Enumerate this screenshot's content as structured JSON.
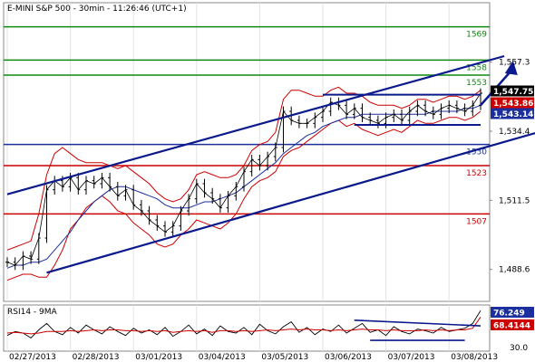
{
  "chart_data": [
    {
      "type": "candlestick",
      "title": "E-MINI S&P 500 - 30min - 11:26:46 (UTC+1)",
      "y_ticks": [
        "1,557.3",
        "1,534.4",
        "1,511.5",
        "1,488.6"
      ],
      "x_labels": [
        "02/27/2013",
        "02/28/2013",
        "03/01/2013",
        "03/04/2013",
        "03/05/2013",
        "03/06/2013",
        "03/07/2013",
        "03/08/2013"
      ],
      "ylim": [
        1478,
        1577
      ],
      "price_tag": {
        "text": "1,547.75",
        "value": 1547.75
      },
      "band_tags": [
        {
          "text": "1,543.86",
          "value": 1543.86,
          "color": "#cc0000"
        },
        {
          "text": "1,543.14",
          "value": 1543.14,
          "color": "#1c2f9e"
        }
      ],
      "horizontal_levels": [
        {
          "text": "1569",
          "value": 1569,
          "color": "#118811"
        },
        {
          "text": "1558",
          "value": 1558,
          "color": "#118811"
        },
        {
          "text": "1553",
          "value": 1553,
          "color": "#118811"
        },
        {
          "text": "1530",
          "value": 1530,
          "color": "#1c2f9e"
        },
        {
          "text": "1523",
          "value": 1523,
          "color": "#cc0000"
        },
        {
          "text": "1507",
          "value": 1507,
          "color": "#cc0000"
        }
      ],
      "channel_upper": [
        [
          0,
          1513.5
        ],
        [
          63,
          1559.3
        ]
      ],
      "channel_lower": [
        [
          5,
          1487.5
        ],
        [
          68,
          1534.6
        ]
      ],
      "consolidation_top": [
        [
          40,
          1546.5
        ],
        [
          60,
          1546.5
        ]
      ],
      "consolidation_bottom": [
        [
          44,
          1536.5
        ],
        [
          60,
          1536.5
        ]
      ],
      "forecast_arrow": [
        [
          60,
          1543
        ],
        [
          64,
          1556
        ]
      ],
      "x_label_index": [
        0,
        8,
        16,
        24,
        32,
        40,
        48,
        56
      ],
      "close": [
        1491,
        1490,
        1493,
        1492,
        1499,
        1515,
        1518,
        1516,
        1519,
        1515,
        1518,
        1517,
        1519,
        1516,
        1513,
        1515,
        1510,
        1508,
        1505,
        1503,
        1501,
        1503,
        1508,
        1512,
        1517,
        1514,
        1512,
        1509,
        1513,
        1516,
        1521,
        1525,
        1523,
        1526,
        1529,
        1541,
        1538,
        1537,
        1537,
        1539,
        1541,
        1544,
        1543,
        1540,
        1542,
        1539,
        1538,
        1537,
        1539,
        1540,
        1538,
        1541,
        1543,
        1541,
        1540,
        1542,
        1543,
        1542,
        1541,
        1543,
        1547
      ],
      "ma": [
        1489,
        1490,
        1490,
        1491,
        1491,
        1492,
        1495,
        1498,
        1501,
        1505,
        1508,
        1511,
        1513,
        1515,
        1516,
        1516,
        1515,
        1514,
        1513,
        1512,
        1510,
        1509,
        1509,
        1509,
        1510,
        1511,
        1511,
        1512,
        1513,
        1514,
        1516,
        1518,
        1520,
        1522,
        1524,
        1527,
        1529,
        1531,
        1533,
        1534,
        1536,
        1537,
        1538,
        1539,
        1539,
        1540,
        1540,
        1540,
        1540,
        1540,
        1540,
        1540,
        1540,
        1540,
        1541,
        1541,
        1541,
        1541,
        1542,
        1542,
        1543
      ],
      "band_upper": [
        1495,
        1496,
        1497,
        1498,
        1507,
        1520,
        1527,
        1529,
        1527,
        1525,
        1524,
        1524,
        1524,
        1523,
        1522,
        1523,
        1521,
        1519,
        1517,
        1514,
        1512,
        1511,
        1512,
        1515,
        1520,
        1521,
        1520,
        1519,
        1519,
        1520,
        1523,
        1528,
        1530,
        1531,
        1534,
        1545,
        1548,
        1548,
        1547,
        1546,
        1546,
        1548,
        1549,
        1547,
        1547,
        1546,
        1544,
        1543,
        1543,
        1543,
        1542,
        1543,
        1545,
        1545,
        1544,
        1545,
        1546,
        1546,
        1545,
        1546,
        1548
      ],
      "band_lower": [
        1485,
        1486,
        1487,
        1487,
        1486,
        1486,
        1490,
        1495,
        1502,
        1505,
        1509,
        1511,
        1513,
        1511,
        1508,
        1507,
        1504,
        1502,
        1500,
        1497,
        1496,
        1497,
        1500,
        1502,
        1505,
        1504,
        1503,
        1502,
        1504,
        1507,
        1512,
        1516,
        1518,
        1519,
        1521,
        1526,
        1528,
        1529,
        1531,
        1533,
        1535,
        1537,
        1538,
        1536,
        1537,
        1535,
        1534,
        1533,
        1534,
        1535,
        1534,
        1536,
        1538,
        1537,
        1537,
        1538,
        1539,
        1539,
        1538,
        1539,
        1541
      ]
    },
    {
      "type": "line",
      "title": "RSI14 - 9MA",
      "ylim": [
        30,
        76.249
      ],
      "value_tags": [
        {
          "text": "76.249",
          "value": 76.249,
          "color": "#1c2f9e"
        },
        {
          "text": "68.4144",
          "value": 68.4144,
          "color": "#cc0000"
        },
        {
          "text": "30.0",
          "value": 30.0,
          "color": "#000000"
        }
      ],
      "resistance": [
        [
          44,
          64
        ],
        [
          60,
          57
        ]
      ],
      "support": [
        [
          46,
          39
        ],
        [
          58,
          39
        ]
      ],
      "series": [
        {
          "values": [
            45,
            50,
            48,
            42,
            52,
            60,
            50,
            46,
            55,
            48,
            58,
            52,
            47,
            56,
            50,
            45,
            54,
            48,
            52,
            46,
            55,
            44,
            50,
            58,
            47,
            53,
            45,
            57,
            50,
            48,
            55,
            46,
            59,
            51,
            47,
            56,
            62,
            49,
            55,
            46,
            53,
            50,
            58,
            48,
            54,
            60,
            49,
            52,
            45,
            56,
            50,
            47,
            53,
            51,
            48,
            55,
            50,
            52,
            54,
            60,
            76
          ]
        },
        {
          "values": [
            48,
            49,
            48,
            47,
            48,
            50,
            50,
            50,
            51,
            50,
            51,
            52,
            51,
            52,
            52,
            51,
            51,
            50,
            51,
            50,
            51,
            49,
            50,
            51,
            50,
            51,
            49,
            51,
            51,
            50,
            51,
            50,
            51,
            52,
            51,
            52,
            53,
            52,
            53,
            52,
            52,
            51,
            52,
            51,
            52,
            53,
            52,
            52,
            51,
            52,
            51,
            51,
            51,
            52,
            51,
            52,
            51,
            52,
            52,
            54,
            68
          ]
        }
      ]
    }
  ],
  "colors": {
    "price": "#000000",
    "band": "#cc0000",
    "ma": "#1c2f9e",
    "trend": "#0a1a8c",
    "green": "#118811",
    "tag_black": "#000000"
  }
}
